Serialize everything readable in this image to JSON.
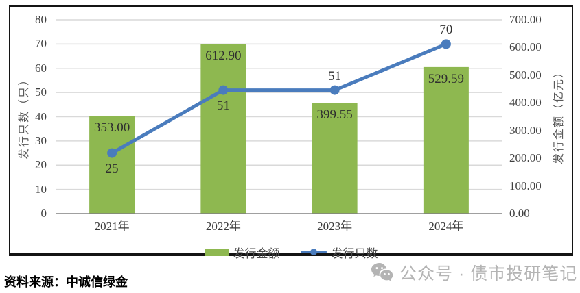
{
  "chart_data": {
    "type": "bar+line",
    "categories": [
      "2021年",
      "2022年",
      "2023年",
      "2024年"
    ],
    "series": [
      {
        "name": "发行金额",
        "type": "bar",
        "axis": "right",
        "color": "#8EB850",
        "values": [
          353.0,
          612.9,
          399.55,
          529.59
        ],
        "labels": [
          "353.00",
          "612.90",
          "399.55",
          "529.59"
        ]
      },
      {
        "name": "发行只数",
        "type": "line",
        "axis": "left",
        "color": "#4A7CBD",
        "values": [
          25,
          51,
          51,
          70
        ],
        "labels": [
          "25",
          "51",
          "51",
          "70"
        ],
        "label_placement": [
          "below",
          "below",
          "above",
          "above"
        ]
      }
    ],
    "left_axis": {
      "title": "发行只数（只）",
      "min": 0,
      "max": 80,
      "step": 10,
      "ticks": [
        "0",
        "10",
        "20",
        "30",
        "40",
        "50",
        "60",
        "70",
        "80"
      ]
    },
    "right_axis": {
      "title": "发行金额（亿元）",
      "min": 0,
      "max": 700,
      "step": 100,
      "ticks": [
        "0.00",
        "100.00",
        "200.00",
        "300.00",
        "400.00",
        "500.00",
        "600.00",
        "700.00"
      ]
    },
    "grid": true,
    "legend_position": "bottom"
  },
  "legend": {
    "items": [
      {
        "label": "发行金额",
        "swatch": "bar",
        "color": "#8EB850"
      },
      {
        "label": "发行只数",
        "swatch": "line",
        "color": "#4A7CBD"
      }
    ]
  },
  "source_note": "资料来源：中诚信绿金",
  "watermark": {
    "icon": "wechat-icon",
    "text": "公众号 · 债市投研笔记"
  },
  "colors": {
    "bar_green": "#8EB850",
    "line_blue": "#4A7CBD",
    "gridline": "#D9D9D9",
    "axis_line": "#808080",
    "frame_border": "#141414",
    "watermark_gray": "#b4b4b4"
  }
}
